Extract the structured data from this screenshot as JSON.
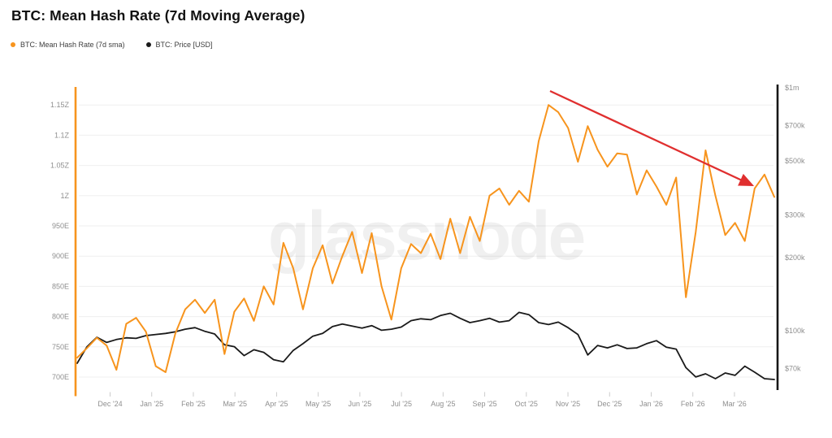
{
  "title": "BTC: Mean Hash Rate (7d Moving Average)",
  "watermark": "glassnode",
  "legend": [
    {
      "label": "BTC: Mean Hash Rate (7d sma)",
      "color": "#f7941d"
    },
    {
      "label": "BTC: Price [USD]",
      "color": "#1a1a1a"
    }
  ],
  "chart_data": {
    "type": "line",
    "title": "BTC: Mean Hash Rate (7d Moving Average)",
    "x_tick_labels": [
      "Dec '24",
      "Jan '25",
      "Feb '25",
      "Mar '25",
      "Apr '25",
      "May '25",
      "Jun '25",
      "Jul '25",
      "Aug '25",
      "Sep '25",
      "Oct '25",
      "Nov '25",
      "Dec '25",
      "Jan '26",
      "Feb '26",
      "Mar '26"
    ],
    "left_axis": {
      "scale": "linear",
      "axis_color": "#f7941d",
      "tick_labels": [
        "1.15Z",
        "1.1Z",
        "1.05Z",
        "1Z",
        "950E",
        "900E",
        "850E",
        "800E",
        "750E",
        "700E"
      ],
      "tick_values_eh": [
        1150,
        1100,
        1050,
        1000,
        950,
        900,
        850,
        800,
        750,
        700
      ],
      "range_eh": [
        669,
        1183
      ]
    },
    "right_axis": {
      "scale": "log",
      "axis_color": "#161616",
      "tick_labels": [
        "$1m",
        "$700k",
        "$500k",
        "$300k",
        "$200k",
        "$100k",
        "$70k"
      ],
      "tick_values_usd": [
        1000000,
        700000,
        500000,
        300000,
        200000,
        100000,
        70000
      ]
    },
    "grid": "horizontal-only",
    "legend_position": "top-left",
    "series": [
      {
        "name": "BTC: Mean Hash Rate (7d sma)",
        "axis": "left",
        "unit": "EH/s",
        "color": "#f7941d",
        "values": [
          732,
          748,
          765,
          752,
          712,
          788,
          798,
          775,
          718,
          708,
          772,
          812,
          828,
          806,
          828,
          738,
          808,
          830,
          793,
          850,
          820,
          922,
          880,
          812,
          880,
          918,
          855,
          900,
          940,
          872,
          938,
          850,
          795,
          880,
          920,
          905,
          937,
          895,
          962,
          905,
          965,
          925,
          1000,
          1012,
          985,
          1008,
          990,
          1090,
          1150,
          1138,
          1112,
          1056,
          1115,
          1076,
          1048,
          1070,
          1068,
          1002,
          1042,
          1015,
          985,
          1030,
          832,
          940,
          1075,
          1000,
          935,
          955,
          925,
          1012,
          1035,
          998
        ]
      },
      {
        "name": "BTC: Price [USD]",
        "axis": "right",
        "unit": "USD",
        "color": "#1a1a1a",
        "values": [
          73500,
          86000,
          94000,
          89500,
          92000,
          93500,
          93000,
          95500,
          96500,
          97500,
          99000,
          101500,
          103000,
          99500,
          97000,
          87500,
          86000,
          79000,
          83500,
          81500,
          76000,
          74500,
          83000,
          88500,
          95000,
          97500,
          104000,
          106500,
          104500,
          102500,
          105000,
          100500,
          101500,
          103500,
          110000,
          112000,
          111000,
          115500,
          118000,
          112500,
          108000,
          110000,
          112500,
          108500,
          110000,
          119000,
          116500,
          108000,
          106000,
          108500,
          103000,
          96500,
          79500,
          87000,
          85000,
          87500,
          84500,
          85000,
          88500,
          91000,
          85500,
          84000,
          70500,
          64500,
          66500,
          63500,
          67000,
          65500,
          71500,
          67500,
          63500,
          63000
        ]
      }
    ],
    "annotations": [
      {
        "name": "downtrend-arrow",
        "type": "arrow",
        "color": "#e02f2f",
        "points_to": "declining hash rate from Oct '25 peak toward Mar '26"
      }
    ]
  }
}
